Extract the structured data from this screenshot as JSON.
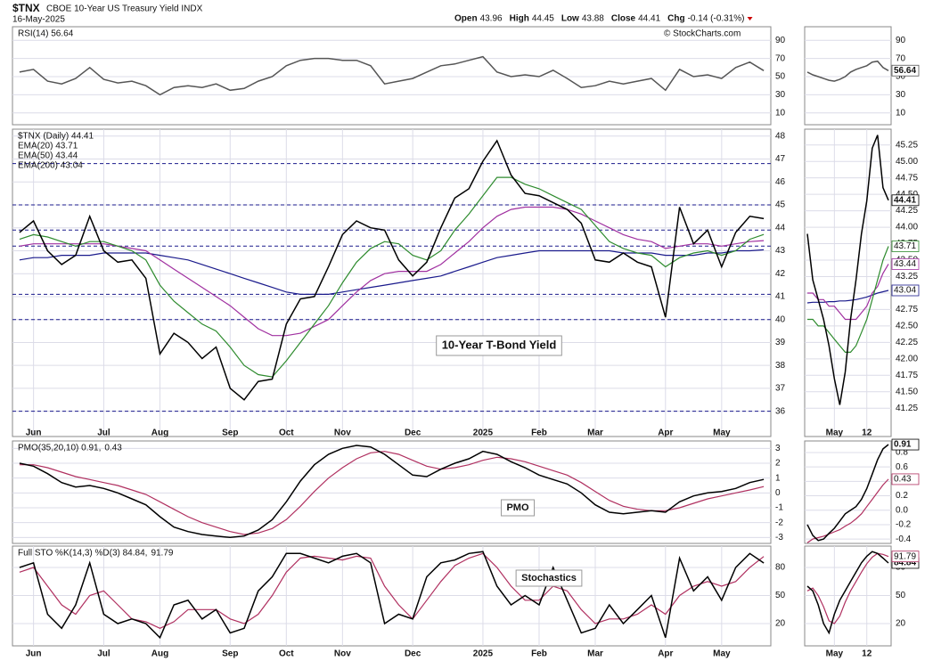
{
  "header": {
    "symbol": "$TNX",
    "name": "CBOE 10-Year US Treasury Yield INDX",
    "date": "16-May-2025",
    "quote": [
      {
        "label": "Open",
        "value": 43.96
      },
      {
        "label": "High",
        "value": 44.45
      },
      {
        "label": "Low",
        "value": 43.88
      },
      {
        "label": "Close",
        "value": 44.41
      },
      {
        "label": "Chg",
        "value": "-0.14 (-0.31%)"
      }
    ],
    "credit": "© StockCharts.com"
  },
  "chart_data": [
    {
      "type": "line",
      "ylim": [
        -3,
        105
      ],
      "yticks": [
        10,
        30,
        50,
        70,
        90
      ],
      "grid": true,
      "series": [
        {
          "name": "RSI(14) 56.64",
          "color": "#555555",
          "values": [
            55,
            58,
            45,
            42,
            48,
            60,
            47,
            43,
            45,
            40,
            30,
            38,
            40,
            38,
            42,
            35,
            37,
            45,
            50,
            62,
            68,
            70,
            70,
            68,
            68,
            62,
            42,
            45,
            48,
            55,
            62,
            64,
            68,
            72,
            55,
            50,
            52,
            50,
            57,
            48,
            38,
            40,
            45,
            42,
            45,
            48,
            35,
            58,
            50,
            52,
            48,
            60,
            66,
            56.64
          ]
        }
      ]
    },
    {
      "type": "line",
      "ylim": [
        34.9,
        48.3
      ],
      "yticks": [
        36,
        37,
        38,
        39,
        40,
        41,
        42,
        43,
        44,
        45,
        46,
        47,
        48
      ],
      "grid": true,
      "annotation": "10-Year T-Bond Yield",
      "levels": [
        36,
        40,
        41.1,
        43.2,
        43.9,
        45,
        46.8
      ],
      "level_color": "#1a1a8c",
      "categories": [
        null,
        "Jun",
        null,
        null,
        null,
        null,
        "Jul",
        null,
        null,
        null,
        "Aug",
        null,
        null,
        null,
        null,
        "Sep",
        null,
        null,
        null,
        "Oct",
        null,
        null,
        null,
        "Nov",
        null,
        null,
        null,
        null,
        "Dec",
        null,
        null,
        null,
        null,
        "2025",
        null,
        null,
        null,
        "Feb",
        null,
        null,
        null,
        "Mar",
        null,
        null,
        null,
        null,
        "Apr",
        null,
        null,
        null,
        "May",
        null,
        null,
        null
      ],
      "series": [
        {
          "name": "$TNX (Daily) 44.41",
          "color": "#000000",
          "values": [
            43.8,
            44.3,
            43.0,
            42.4,
            42.8,
            44.5,
            43.0,
            42.5,
            42.6,
            41.8,
            38.5,
            39.4,
            39.0,
            38.3,
            38.8,
            37.0,
            36.5,
            37.3,
            37.4,
            39.8,
            40.9,
            41.0,
            42.3,
            43.7,
            44.3,
            44.0,
            43.9,
            42.6,
            41.9,
            42.5,
            44.0,
            45.3,
            45.7,
            46.9,
            47.8,
            46.3,
            45.5,
            45.4,
            45.1,
            44.8,
            44.2,
            42.6,
            42.5,
            42.9,
            42.5,
            42.3,
            40.1,
            44.9,
            43.3,
            43.9,
            42.3,
            43.8,
            44.5,
            44.4
          ]
        },
        {
          "name": "EMA(20) 43.71",
          "color": "#2e8b2e",
          "values": [
            43.5,
            43.7,
            43.6,
            43.4,
            43.2,
            43.4,
            43.4,
            43.2,
            43.0,
            42.6,
            41.5,
            40.8,
            40.3,
            39.8,
            39.5,
            38.8,
            38.0,
            37.6,
            37.5,
            38.2,
            39.0,
            39.8,
            40.6,
            41.6,
            42.5,
            43.1,
            43.4,
            43.3,
            42.8,
            42.6,
            43.0,
            43.9,
            44.6,
            45.4,
            46.2,
            46.2,
            45.9,
            45.7,
            45.4,
            45.1,
            44.8,
            44.1,
            43.4,
            43.1,
            42.9,
            42.8,
            42.3,
            42.7,
            42.9,
            43.0,
            42.8,
            43.0,
            43.5,
            43.71
          ]
        },
        {
          "name": "EMA(50) 43.44",
          "color": "#a030a0",
          "values": [
            43.2,
            43.3,
            43.3,
            43.3,
            43.3,
            43.3,
            43.3,
            43.2,
            43.1,
            43.0,
            42.6,
            42.2,
            41.8,
            41.4,
            41.0,
            40.6,
            40.1,
            39.6,
            39.3,
            39.3,
            39.4,
            39.7,
            40.0,
            40.6,
            41.2,
            41.7,
            42.0,
            42.1,
            42.1,
            42.1,
            42.4,
            42.9,
            43.4,
            44.0,
            44.5,
            44.8,
            44.9,
            44.9,
            44.9,
            44.8,
            44.6,
            44.3,
            44.0,
            43.7,
            43.5,
            43.4,
            43.1,
            43.2,
            43.3,
            43.3,
            43.2,
            43.3,
            43.4,
            43.44
          ]
        },
        {
          "name": "EMA(200) 43.04",
          "color": "#1a1a8c",
          "values": [
            42.6,
            42.7,
            42.7,
            42.8,
            42.8,
            42.8,
            42.9,
            42.9,
            42.9,
            42.9,
            42.8,
            42.7,
            42.6,
            42.4,
            42.2,
            42.0,
            41.8,
            41.6,
            41.4,
            41.2,
            41.1,
            41.1,
            41.1,
            41.2,
            41.3,
            41.4,
            41.5,
            41.6,
            41.7,
            41.8,
            41.9,
            42.1,
            42.3,
            42.5,
            42.7,
            42.8,
            42.9,
            43.0,
            43.0,
            43.0,
            43.0,
            43.0,
            43.0,
            42.9,
            42.9,
            42.9,
            42.8,
            42.8,
            42.8,
            42.9,
            42.9,
            43.0,
            43.0,
            43.04
          ]
        }
      ]
    },
    {
      "type": "line",
      "ylim": [
        -3.4,
        3.5
      ],
      "yticks": [
        -3,
        -2,
        -1,
        0,
        1,
        2,
        3
      ],
      "grid": true,
      "annotation": "PMO",
      "series": [
        {
          "name": "PMO(35,20,10) 0.91,",
          "color": "#000000",
          "values": [
            2.0,
            1.8,
            1.3,
            0.7,
            0.4,
            0.5,
            0.3,
            0.0,
            -0.4,
            -0.8,
            -1.6,
            -2.3,
            -2.6,
            -2.8,
            -2.9,
            -3.0,
            -2.9,
            -2.5,
            -1.8,
            -0.6,
            0.8,
            1.9,
            2.6,
            3.0,
            3.2,
            3.1,
            2.6,
            1.9,
            1.2,
            1.1,
            1.6,
            2.0,
            2.3,
            2.8,
            2.6,
            2.1,
            1.7,
            1.2,
            0.9,
            0.6,
            0.0,
            -0.8,
            -1.3,
            -1.4,
            -1.3,
            -1.2,
            -1.3,
            -0.6,
            -0.2,
            0.0,
            0.1,
            0.3,
            0.7,
            0.91
          ]
        },
        {
          "name": "0.43",
          "color": "#b03060",
          "values": [
            1.9,
            1.9,
            1.7,
            1.4,
            1.1,
            0.9,
            0.7,
            0.5,
            0.2,
            -0.1,
            -0.6,
            -1.1,
            -1.6,
            -2.0,
            -2.3,
            -2.6,
            -2.8,
            -2.7,
            -2.4,
            -1.8,
            -0.9,
            0.1,
            1.0,
            1.7,
            2.3,
            2.7,
            2.8,
            2.6,
            2.2,
            1.8,
            1.6,
            1.7,
            1.9,
            2.2,
            2.4,
            2.3,
            2.1,
            1.8,
            1.5,
            1.2,
            0.7,
            0.1,
            -0.5,
            -0.9,
            -1.1,
            -1.2,
            -1.2,
            -1.0,
            -0.7,
            -0.4,
            -0.2,
            0.0,
            0.2,
            0.43
          ]
        }
      ]
    },
    {
      "type": "line",
      "ylim": [
        -3.8,
        102.9
      ],
      "yticks": [
        20,
        50,
        80
      ],
      "grid": true,
      "annotation": "Stochastics",
      "series": [
        {
          "name": "Full STO %K(14,3) %D(3) 84.84,",
          "color": "#000000",
          "values": [
            80,
            85,
            30,
            15,
            40,
            85,
            30,
            20,
            25,
            20,
            5,
            40,
            45,
            25,
            35,
            10,
            15,
            55,
            70,
            95,
            95,
            90,
            85,
            92,
            95,
            85,
            20,
            30,
            25,
            70,
            85,
            88,
            95,
            97,
            60,
            40,
            50,
            40,
            80,
            45,
            10,
            15,
            40,
            20,
            35,
            50,
            5,
            90,
            55,
            70,
            45,
            80,
            95,
            84.84
          ]
        },
        {
          "name": "91.79",
          "color": "#b03060",
          "values": [
            75,
            80,
            60,
            40,
            30,
            50,
            55,
            40,
            25,
            22,
            15,
            22,
            35,
            35,
            35,
            25,
            20,
            30,
            50,
            75,
            90,
            92,
            90,
            88,
            92,
            90,
            60,
            40,
            25,
            45,
            65,
            82,
            90,
            95,
            80,
            60,
            45,
            45,
            60,
            55,
            35,
            20,
            25,
            25,
            30,
            40,
            30,
            50,
            60,
            65,
            60,
            65,
            80,
            91.79
          ]
        }
      ]
    },
    {
      "type": "line",
      "ylim": [
        -3,
        105
      ],
      "yticks": [
        10,
        30,
        50,
        70,
        90
      ],
      "grid": true,
      "series": [
        {
          "color": "#555555",
          "values": [
            55,
            52,
            50,
            48,
            46,
            45,
            47,
            50,
            55,
            58,
            60,
            62,
            66,
            67,
            60,
            56.64
          ]
        }
      ]
    },
    {
      "type": "line",
      "ylim": [
        40.82,
        45.49
      ],
      "yticks": [
        41.25,
        {
          "value": 41.5,
          "label": "41.50"
        },
        41.75,
        {
          "value": 42,
          "label": "42.00"
        },
        42.25,
        {
          "value": 42.5,
          "label": "42.50"
        },
        42.75,
        {
          "value": 43,
          "label": "43.00"
        },
        43.25,
        {
          "value": 43.5,
          "label": "43.50"
        },
        43.75,
        {
          "value": 44,
          "label": "44.00"
        },
        44.25,
        {
          "value": 44.5,
          "label": "44.50"
        },
        44.75,
        {
          "value": 45,
          "label": "45.00"
        },
        45.25
      ],
      "grid": true,
      "categories": [
        null,
        null,
        null,
        null,
        null,
        "May",
        null,
        null,
        null,
        null,
        null,
        "12",
        null,
        null,
        null,
        null
      ],
      "series": [
        {
          "color": "#000000",
          "values": [
            43.9,
            43.2,
            42.9,
            42.6,
            42.2,
            41.7,
            41.3,
            41.8,
            42.6,
            43.2,
            43.9,
            44.4,
            45.2,
            45.4,
            44.6,
            44.41
          ]
        },
        {
          "color": "#2e8b2e",
          "values": [
            42.6,
            42.6,
            42.5,
            42.5,
            42.4,
            42.3,
            42.2,
            42.1,
            42.1,
            42.2,
            42.4,
            42.6,
            42.9,
            43.2,
            43.5,
            43.71
          ]
        },
        {
          "color": "#a030a0",
          "values": [
            43.0,
            43.0,
            42.9,
            42.9,
            42.8,
            42.8,
            42.7,
            42.6,
            42.6,
            42.6,
            42.7,
            42.8,
            43.0,
            43.1,
            43.3,
            43.44
          ]
        },
        {
          "color": "#1a1a8c",
          "values": [
            42.85,
            42.86,
            42.86,
            42.86,
            42.87,
            42.87,
            42.88,
            42.88,
            42.89,
            42.9,
            42.92,
            42.94,
            42.97,
            43.0,
            43.02,
            43.04
          ]
        }
      ]
    },
    {
      "type": "line",
      "ylim": [
        -0.46,
        0.96
      ],
      "yticks": [
        -0.4,
        -0.2,
        {
          "value": 0,
          "label": "0.0"
        },
        0.2,
        0.4,
        0.6,
        0.8
      ],
      "grid": true,
      "series": [
        {
          "color": "#000000",
          "values": [
            -0.2,
            -0.35,
            -0.42,
            -0.4,
            -0.32,
            -0.25,
            -0.15,
            -0.05,
            0.0,
            0.05,
            0.15,
            0.3,
            0.5,
            0.7,
            0.85,
            0.91
          ]
        },
        {
          "color": "#b03060",
          "values": [
            -0.45,
            -0.4,
            -0.38,
            -0.36,
            -0.33,
            -0.3,
            -0.27,
            -0.22,
            -0.18,
            -0.12,
            -0.05,
            0.05,
            0.15,
            0.25,
            0.35,
            0.43
          ]
        }
      ]
    },
    {
      "type": "line",
      "ylim": [
        -3.8,
        102.9
      ],
      "yticks": [
        20,
        50,
        80
      ],
      "grid": true,
      "series": [
        {
          "color": "#000000",
          "values": [
            60,
            55,
            40,
            20,
            10,
            30,
            45,
            55,
            65,
            75,
            85,
            92,
            97,
            95,
            90,
            84.84
          ]
        },
        {
          "color": "#b03060",
          "values": [
            55,
            58,
            50,
            38,
            23,
            20,
            28,
            43,
            55,
            65,
            75,
            84,
            91,
            95,
            94,
            91.79
          ]
        }
      ]
    }
  ]
}
